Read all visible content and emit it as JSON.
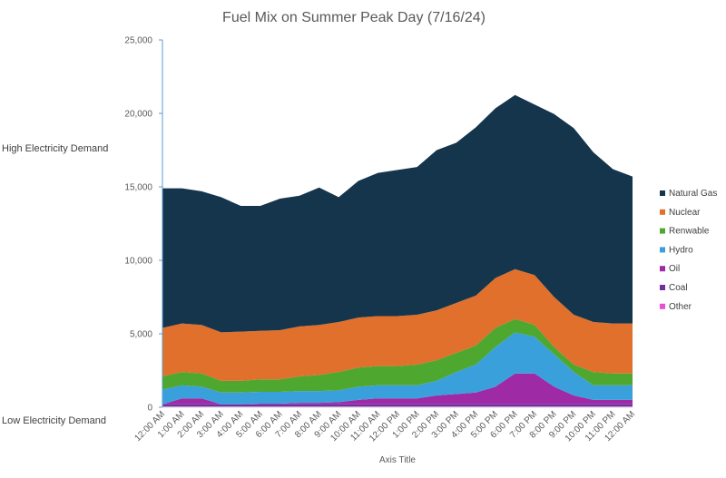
{
  "chart_data": {
    "type": "area",
    "stacked": true,
    "title": "Fuel Mix on Summer Peak Day (7/16/24)",
    "xlabel": "Axis Title",
    "ylabel": "",
    "side_labels": {
      "top": "High Electricity Demand",
      "bottom": "Low Electricity Demand"
    },
    "ylim": [
      0,
      25000
    ],
    "yticks": [
      "0",
      "5,000",
      "10,000",
      "15,000",
      "20,000",
      "25,000"
    ],
    "ytick_values": [
      0,
      5000,
      10000,
      15000,
      20000,
      25000
    ],
    "grid": false,
    "legend_position": "right",
    "categories": [
      "12:00 AM",
      "1:00 AM",
      "2:00 AM",
      "3:00 AM",
      "4:00 AM",
      "5:00 AM",
      "6:00 AM",
      "7:00 AM",
      "8:00 AM",
      "9:00 AM",
      "10:00 AM",
      "11:00 AM",
      "12:00 PM",
      "1:00 PM",
      "2:00 PM",
      "3:00 PM",
      "4:00 PM",
      "5:00 PM",
      "6:00 PM",
      "7:00 PM",
      "8:00 PM",
      "9:00 PM",
      "10:00 PM",
      "11:00 PM",
      "12:00 AM"
    ],
    "series": [
      {
        "name": "Other",
        "color": "#e84fd9",
        "values": [
          50,
          50,
          50,
          50,
          50,
          50,
          50,
          50,
          50,
          50,
          50,
          50,
          50,
          50,
          50,
          50,
          50,
          50,
          50,
          50,
          50,
          50,
          50,
          50,
          50
        ]
      },
      {
        "name": "Coal",
        "color": "#7030a0",
        "values": [
          150,
          150,
          150,
          150,
          150,
          150,
          150,
          150,
          150,
          150,
          150,
          150,
          150,
          150,
          150,
          150,
          150,
          150,
          150,
          150,
          150,
          150,
          150,
          150,
          150
        ]
      },
      {
        "name": "Oil",
        "color": "#9e2aa6",
        "values": [
          0,
          400,
          400,
          0,
          0,
          50,
          50,
          100,
          100,
          150,
          300,
          400,
          400,
          400,
          600,
          700,
          800,
          1200,
          2100,
          2100,
          1200,
          600,
          300,
          300,
          300
        ]
      },
      {
        "name": "Hydro",
        "color": "#3aa0dc",
        "values": [
          1000,
          900,
          800,
          800,
          800,
          800,
          800,
          800,
          800,
          800,
          900,
          900,
          900,
          900,
          1000,
          1500,
          1900,
          2700,
          2800,
          2500,
          2200,
          1600,
          1000,
          1000,
          1000
        ]
      },
      {
        "name": "Renwable",
        "color": "#4ea72e",
        "values": [
          900,
          900,
          900,
          800,
          800,
          850,
          850,
          1000,
          1100,
          1250,
          1300,
          1300,
          1300,
          1400,
          1400,
          1300,
          1300,
          1300,
          900,
          800,
          500,
          500,
          900,
          800,
          800
        ]
      },
      {
        "name": "Nuclear",
        "color": "#e0702b",
        "values": [
          3300,
          3300,
          3300,
          3300,
          3350,
          3300,
          3350,
          3400,
          3400,
          3400,
          3400,
          3400,
          3400,
          3400,
          3400,
          3400,
          3400,
          3400,
          3400,
          3400,
          3400,
          3400,
          3400,
          3400,
          3400
        ]
      },
      {
        "name": "Natural Gas",
        "color": "#15354d",
        "values": [
          9500,
          9200,
          9100,
          9200,
          8550,
          8500,
          8950,
          8900,
          9350,
          8500,
          9300,
          9750,
          9950,
          10050,
          10900,
          10900,
          11450,
          11550,
          11850,
          11600,
          12450,
          12700,
          11550,
          10500,
          10000
        ]
      }
    ],
    "legend_order": [
      "Natural Gas",
      "Nuclear",
      "Renwable",
      "Hydro",
      "Oil",
      "Coal",
      "Other"
    ]
  }
}
